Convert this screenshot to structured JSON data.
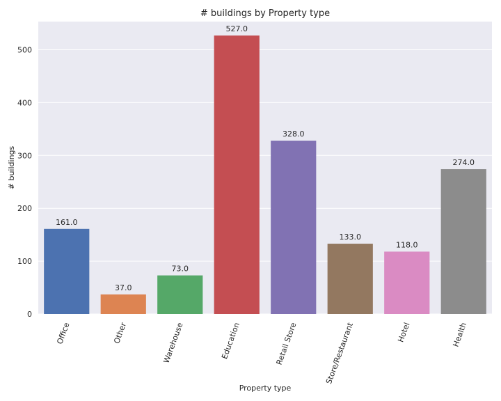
{
  "chart_data": {
    "type": "bar",
    "title": "# buildings by Property type",
    "xlabel": "Property type",
    "ylabel": "# buildings",
    "categories": [
      "Office",
      "Other",
      "Warehouse",
      "Education",
      "Retail Store",
      "Store/Restaurant",
      "Hotel",
      "Health"
    ],
    "values": [
      161.0,
      37.0,
      73.0,
      527.0,
      328.0,
      133.0,
      118.0,
      274.0
    ],
    "value_labels": [
      "161.0",
      "37.0",
      "73.0",
      "527.0",
      "328.0",
      "133.0",
      "118.0",
      "274.0"
    ],
    "colors": [
      "#4c72b0",
      "#dd8452",
      "#55a868",
      "#c44e52",
      "#8172b3",
      "#937860",
      "#da8bc3",
      "#8c8c8c"
    ],
    "ylim": [
      0,
      553.35
    ],
    "yticks": [
      0,
      100,
      200,
      300,
      400,
      500
    ],
    "ytick_labels": [
      "0",
      "100",
      "200",
      "300",
      "400",
      "500"
    ],
    "grid": true,
    "legend": "none",
    "background": "#eaeaf2"
  }
}
